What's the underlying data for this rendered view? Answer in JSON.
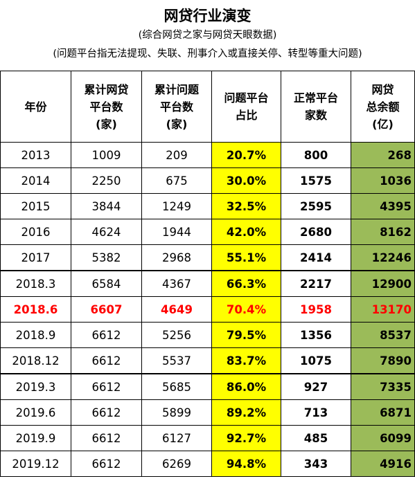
{
  "header": {
    "title": "网贷行业演变",
    "subtitle": "(综合网贷之家与网贷天眼数据)",
    "note": "(问题平台指无法提现、失联、刑事介入或直接关停、转型等重大问题)"
  },
  "columns": [
    [
      "年份"
    ],
    [
      "累计网贷",
      "平台数",
      "(家)"
    ],
    [
      "累计问题",
      "平台数",
      "(家)"
    ],
    [
      "问题平台",
      "占比"
    ],
    [
      "正常平台",
      "家数"
    ],
    [
      "网贷",
      "总余额",
      "(亿)"
    ]
  ],
  "rows": [
    {
      "year": "2013",
      "cum_platforms": "1009",
      "cum_problem": "209",
      "problem_ratio": "20.7%",
      "normal": "800",
      "balance": "268",
      "highlight": false
    },
    {
      "year": "2014",
      "cum_platforms": "2250",
      "cum_problem": "675",
      "problem_ratio": "30.0%",
      "normal": "1575",
      "balance": "1036",
      "highlight": false
    },
    {
      "year": "2015",
      "cum_platforms": "3844",
      "cum_problem": "1249",
      "problem_ratio": "32.5%",
      "normal": "2595",
      "balance": "4395",
      "highlight": false
    },
    {
      "year": "2016",
      "cum_platforms": "4624",
      "cum_problem": "1944",
      "problem_ratio": "42.0%",
      "normal": "2680",
      "balance": "8162",
      "highlight": false
    },
    {
      "year": "2017",
      "cum_platforms": "5382",
      "cum_problem": "2968",
      "problem_ratio": "55.1%",
      "normal": "2414",
      "balance": "12246",
      "highlight": false
    },
    {
      "year": "2018.3",
      "cum_platforms": "6584",
      "cum_problem": "4367",
      "problem_ratio": "66.3%",
      "normal": "2217",
      "balance": "12900",
      "highlight": false
    },
    {
      "year": "2018.6",
      "cum_platforms": "6607",
      "cum_problem": "4649",
      "problem_ratio": "70.4%",
      "normal": "1958",
      "balance": "13170",
      "highlight": true
    },
    {
      "year": "2018.9",
      "cum_platforms": "6612",
      "cum_problem": "5256",
      "problem_ratio": "79.5%",
      "normal": "1356",
      "balance": "8537",
      "highlight": false
    },
    {
      "year": "2018.12",
      "cum_platforms": "6612",
      "cum_problem": "5537",
      "problem_ratio": "83.7%",
      "normal": "1075",
      "balance": "7890",
      "highlight": false
    },
    {
      "year": "2019.3",
      "cum_platforms": "6612",
      "cum_problem": "5685",
      "problem_ratio": "86.0%",
      "normal": "927",
      "balance": "7335",
      "highlight": false
    },
    {
      "year": "2019.6",
      "cum_platforms": "6612",
      "cum_problem": "5899",
      "problem_ratio": "89.2%",
      "normal": "713",
      "balance": "6871",
      "highlight": false
    },
    {
      "year": "2019.9",
      "cum_platforms": "6612",
      "cum_problem": "6127",
      "problem_ratio": "92.7%",
      "normal": "485",
      "balance": "6099",
      "highlight": false
    },
    {
      "year": "2019.12",
      "cum_platforms": "6612",
      "cum_problem": "6269",
      "problem_ratio": "94.8%",
      "normal": "343",
      "balance": "4916",
      "highlight": false
    }
  ],
  "colors": {
    "ratio_bg": "#ffff00",
    "balance_bg": "#9bbb59",
    "highlight_text": "#ff0000"
  }
}
